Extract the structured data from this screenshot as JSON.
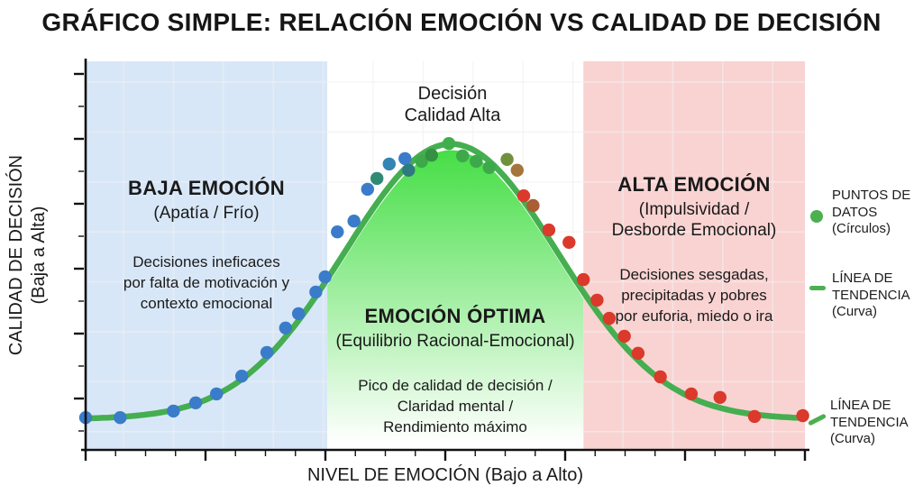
{
  "title": "GRÁFICO SIMPLE: RELACIÓN EMOCIÓN VS CALIDAD DE DECISIÓN",
  "annotation": "Decisión\nCalidad Alta",
  "x_axis_label": "NIVEL DE EMOCIÓN (Bajo a Alto)",
  "y_axis_label": "CALIDAD DE DECISIÓN\n(Baja a Alta)",
  "zones": {
    "low": {
      "title": "BAJA EMOCIÓN",
      "subtitle": "(Apatía / Frío)",
      "description": "Decisiones ineficaces\npor falta de motivación y\ncontexto emocional",
      "bg": "#d8e7f7",
      "x_start": 0,
      "x_end": 33.6
    },
    "optimal": {
      "title": "EMOCIÓN ÓPTIMA",
      "subtitle": "(Equilibrio Racional-Emocional)",
      "description": "Pico de calidad de decisión /\nClaridad mental /\nRendimiento máximo",
      "bg": "#ffffff",
      "x_start": 33.6,
      "x_end": 69.2
    },
    "high": {
      "title": "ALTA EMOCIÓN",
      "subtitle": "(Impulsividad /\nDesborde Emocional)",
      "description": "Decisiones sesgadas,\nprecipitadas y pobres\npor euforia, miedo o ira",
      "bg": "#f9d3d2",
      "x_start": 69.2,
      "x_end": 100
    }
  },
  "legend": {
    "points": {
      "label": "PUNTOS DE\nDATOS\n(Círculos)"
    },
    "trend1": {
      "label": "LÍNEA DE\nTENDENCIA\n(Curva)"
    },
    "trend2": {
      "label": "LÍNEA DE\nTENDENCIA\n(Curva)"
    }
  },
  "colors": {
    "trend_line": "#45ae50",
    "legend_green": "#4caf50",
    "area_top": "#3fdd3f",
    "area_bottom": "#ffffff",
    "axis": "#111111"
  },
  "chart_data": {
    "type": "scatter",
    "title": "GRÁFICO SIMPLE: RELACIÓN EMOCIÓN VS CALIDAD DE DECISIÓN",
    "xlabel": "NIVEL DE EMOCIÓN (Bajo a Alto)",
    "ylabel": "CALIDAD DE DECISIÓN (Baja a Alta)",
    "x_range": [
      0,
      100
    ],
    "y_range": [
      0,
      100
    ],
    "axes_qualitative": true,
    "grid": true,
    "legend_position": "right",
    "trend": {
      "shape": "gaussian",
      "center": 50.8,
      "sigma": 14.8,
      "baseline": 7.7,
      "amplitude": 71
    },
    "points": [
      {
        "x": 0,
        "y": 8.1,
        "c": "#3a7cc9"
      },
      {
        "x": 4.8,
        "y": 8.1,
        "c": "#3a7cc9"
      },
      {
        "x": 12.2,
        "y": 9.8,
        "c": "#3a7cc9"
      },
      {
        "x": 15.3,
        "y": 11.9,
        "c": "#3a7cc9"
      },
      {
        "x": 18.2,
        "y": 14.2,
        "c": "#3a7cc9"
      },
      {
        "x": 21.7,
        "y": 18.8,
        "c": "#3a7cc9"
      },
      {
        "x": 25.2,
        "y": 24.9,
        "c": "#3a7cc9"
      },
      {
        "x": 27.8,
        "y": 31.2,
        "c": "#3a7cc9"
      },
      {
        "x": 29.6,
        "y": 34.9,
        "c": "#3a7cc9"
      },
      {
        "x": 32,
        "y": 40.5,
        "c": "#3a7cc9"
      },
      {
        "x": 33.3,
        "y": 44.4,
        "c": "#3a7cc9"
      },
      {
        "x": 35,
        "y": 56,
        "c": "#3a7cc9"
      },
      {
        "x": 37.3,
        "y": 58.8,
        "c": "#3a7cc9"
      },
      {
        "x": 39.2,
        "y": 67,
        "c": "#3a7cc9"
      },
      {
        "x": 40.5,
        "y": 69.8,
        "c": "#2f8a74"
      },
      {
        "x": 42.2,
        "y": 73.5,
        "c": "#3584b5"
      },
      {
        "x": 44.4,
        "y": 74.9,
        "c": "#3a7cc9"
      },
      {
        "x": 44.9,
        "y": 71.9,
        "c": "#2d7a80"
      },
      {
        "x": 46.7,
        "y": 74.2,
        "c": "#3da94a"
      },
      {
        "x": 48.1,
        "y": 75.8,
        "c": "#349042"
      },
      {
        "x": 50.5,
        "y": 78.8,
        "c": "#3fae4c"
      },
      {
        "x": 52.4,
        "y": 75.6,
        "c": "#3da94a"
      },
      {
        "x": 54.3,
        "y": 74.2,
        "c": "#3da94a"
      },
      {
        "x": 56.1,
        "y": 72.6,
        "c": "#3da94a"
      },
      {
        "x": 58.6,
        "y": 74.7,
        "c": "#71903c"
      },
      {
        "x": 60,
        "y": 71.9,
        "c": "#a4763b"
      },
      {
        "x": 60.9,
        "y": 65.3,
        "c": "#da392b"
      },
      {
        "x": 62.2,
        "y": 62.8,
        "c": "#a95e33"
      },
      {
        "x": 64.4,
        "y": 56.5,
        "c": "#da392b"
      },
      {
        "x": 67.2,
        "y": 53.3,
        "c": "#da392b"
      },
      {
        "x": 69.2,
        "y": 43.7,
        "c": "#da392b"
      },
      {
        "x": 71.1,
        "y": 38.4,
        "c": "#da392b"
      },
      {
        "x": 72.8,
        "y": 33.7,
        "c": "#da392b"
      },
      {
        "x": 74.9,
        "y": 29.1,
        "c": "#da392b"
      },
      {
        "x": 76.8,
        "y": 24.7,
        "c": "#da392b"
      },
      {
        "x": 79.9,
        "y": 18.6,
        "c": "#da392b"
      },
      {
        "x": 84.2,
        "y": 14.2,
        "c": "#da392b"
      },
      {
        "x": 88.2,
        "y": 13.3,
        "c": "#da392b"
      },
      {
        "x": 93,
        "y": 8.4,
        "c": "#da392b"
      },
      {
        "x": 99.7,
        "y": 8.6,
        "c": "#da392b"
      }
    ]
  }
}
